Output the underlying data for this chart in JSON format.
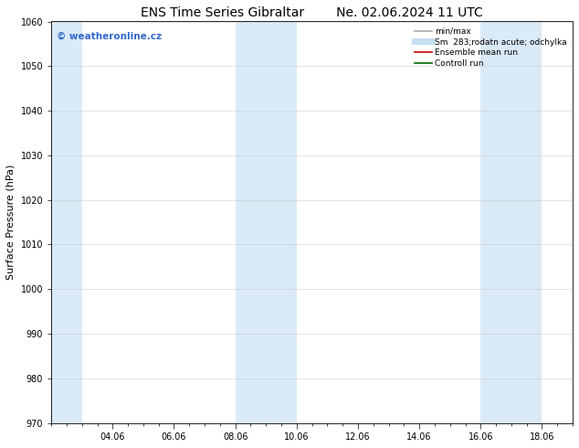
{
  "title_left": "ENS Time Series Gibraltar",
  "title_right": "Ne. 02.06.2024 11 UTC",
  "ylabel": "Surface Pressure (hPa)",
  "ylim": [
    970,
    1060
  ],
  "yticks": [
    970,
    980,
    990,
    1000,
    1010,
    1020,
    1030,
    1040,
    1050,
    1060
  ],
  "x_min": 0,
  "x_max": 17,
  "xtick_labels": [
    "04.06",
    "06.06",
    "08.06",
    "10.06",
    "12.06",
    "14.06",
    "16.06",
    "18.06"
  ],
  "xtick_positions": [
    2,
    4,
    6,
    8,
    10,
    12,
    14,
    16
  ],
  "shaded_bands": [
    {
      "x_start": 0,
      "x_end": 1,
      "color": "#daeaf7"
    },
    {
      "x_start": 6,
      "x_end": 8,
      "color": "#daeaf7"
    },
    {
      "x_start": 14,
      "x_end": 16,
      "color": "#daeaf7"
    }
  ],
  "watermark_text": "© weatheronline.cz",
  "watermark_color": "#3366cc",
  "legend_items": [
    {
      "label": "min/max",
      "color": "#aaaaaa",
      "linestyle": "-",
      "linewidth": 1.2
    },
    {
      "label": "Sm  283;rodatn acute; odchylka",
      "color": "#c5dff0",
      "linestyle": "-",
      "linewidth": 5
    },
    {
      "label": "Ensemble mean run",
      "color": "#cc0000",
      "linestyle": "-",
      "linewidth": 1.2
    },
    {
      "label": "Controll run",
      "color": "#006600",
      "linestyle": "-",
      "linewidth": 1.2
    }
  ],
  "title_fontsize": 10,
  "ylabel_fontsize": 8,
  "tick_labelsize": 7,
  "legend_fontsize": 6.5,
  "watermark_fontsize": 7.5,
  "background_color": "#ffffff",
  "plot_bg_color": "#ffffff",
  "grid_color": "#cccccc",
  "tick_color": "#000000",
  "spine_color": "#000000"
}
